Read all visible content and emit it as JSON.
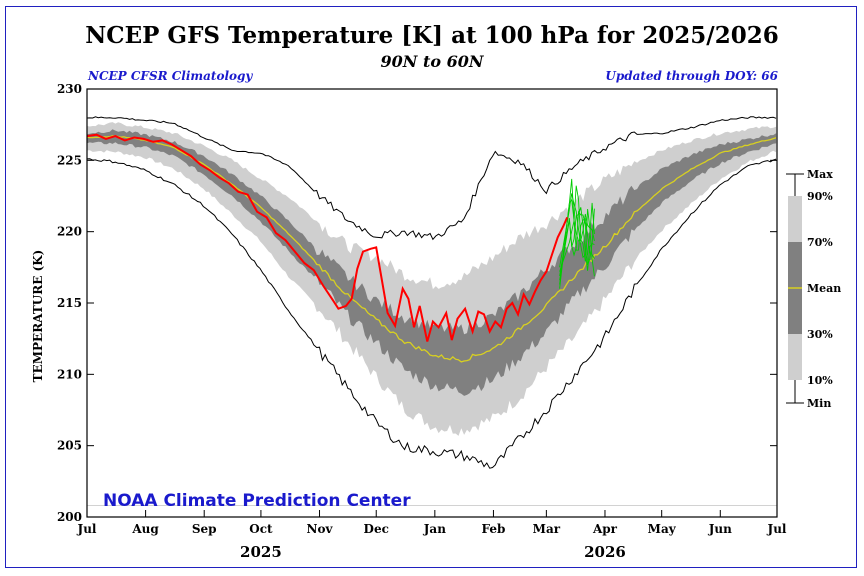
{
  "chart_data": {
    "type": "line",
    "title": "NCEP GFS Temperature [K] at 100 hPa for 2025/2026",
    "subtitle": "90N to 60N",
    "climatology_label": "NCEP CFSR Climatology",
    "updated_label": "Updated through DOY:  66",
    "ylabel": "TEMPERATURE (K)",
    "ylim": [
      200,
      230
    ],
    "yticks": [
      200,
      205,
      210,
      215,
      220,
      225,
      230
    ],
    "xlim": [
      0,
      365
    ],
    "month_ticks": [
      {
        "label": "Jul",
        "day": 0
      },
      {
        "label": "Aug",
        "day": 31
      },
      {
        "label": "Sep",
        "day": 62
      },
      {
        "label": "Oct",
        "day": 92
      },
      {
        "label": "Nov",
        "day": 123
      },
      {
        "label": "Dec",
        "day": 153
      },
      {
        "label": "Jan",
        "day": 184
      },
      {
        "label": "Feb",
        "day": 215
      },
      {
        "label": "Mar",
        "day": 243
      },
      {
        "label": "Apr",
        "day": 274
      },
      {
        "label": "May",
        "day": 304
      },
      {
        "label": "Jun",
        "day": 335
      },
      {
        "label": "Jul",
        "day": 365
      }
    ],
    "year_labels": [
      {
        "label": "2025",
        "day": 92
      },
      {
        "label": "2026",
        "day": 274
      }
    ],
    "credit": "NOAA Climate Prediction Center",
    "legend": {
      "max": "Max",
      "p90": "90%",
      "p70": "70%",
      "mean": "Mean",
      "p30": "30%",
      "p10": "10%",
      "min": "Min"
    },
    "colors": {
      "outer_band": "#cfcfcf",
      "inner_band": "#808080",
      "mean": "#d8d020",
      "observed": "#ff0000",
      "forecast": "#00cc00",
      "extremes": "#000000"
    },
    "climatology": {
      "days": [
        0,
        15,
        31,
        46,
        62,
        77,
        92,
        107,
        123,
        138,
        153,
        168,
        184,
        199,
        215,
        229,
        243,
        258,
        274,
        289,
        304,
        320,
        335,
        350,
        365
      ],
      "mean": [
        226.6,
        226.7,
        226.4,
        225.9,
        224.7,
        223.3,
        221.7,
        219.8,
        217.6,
        215.5,
        213.8,
        212.3,
        211.3,
        211.0,
        211.8,
        213.2,
        214.8,
        216.9,
        219.0,
        221.2,
        223.0,
        224.4,
        225.5,
        226.1,
        226.6
      ],
      "p30": [
        226.2,
        226.2,
        225.9,
        225.3,
        224.0,
        222.5,
        220.7,
        218.6,
        216.4,
        214.1,
        212.2,
        210.3,
        209.2,
        208.8,
        209.6,
        211.2,
        212.9,
        215.3,
        217.6,
        220.0,
        222.0,
        223.6,
        224.8,
        225.6,
        226.2
      ],
      "p70": [
        226.9,
        227.1,
        226.8,
        226.3,
        225.3,
        224.0,
        222.5,
        220.7,
        218.6,
        216.8,
        215.2,
        214.0,
        213.2,
        213.2,
        214.1,
        215.6,
        217.4,
        219.2,
        221.1,
        222.9,
        224.4,
        225.4,
        226.1,
        226.5,
        226.9
      ],
      "p10": [
        225.7,
        225.6,
        225.2,
        224.4,
        223.0,
        221.2,
        219.3,
        216.8,
        214.6,
        212.2,
        209.8,
        207.6,
        206.3,
        206.1,
        206.9,
        208.4,
        210.5,
        212.6,
        215.2,
        217.9,
        220.1,
        222.0,
        223.7,
        224.9,
        225.7
      ],
      "p90": [
        227.4,
        227.6,
        227.3,
        226.9,
        226.0,
        225.0,
        223.7,
        222.4,
        220.6,
        219.0,
        218.2,
        217.0,
        216.3,
        216.8,
        218.2,
        219.6,
        220.6,
        222.1,
        223.6,
        224.8,
        225.7,
        226.4,
        226.9,
        227.2,
        227.4
      ],
      "min": [
        225.1,
        224.9,
        224.3,
        223.3,
        221.8,
        219.8,
        217.3,
        214.4,
        211.6,
        209.0,
        206.6,
        204.9,
        204.6,
        204.3,
        203.5,
        205.5,
        207.5,
        210.0,
        212.6,
        215.9,
        218.8,
        221.3,
        223.3,
        224.6,
        225.1
      ],
      "max": [
        228.0,
        228.0,
        227.8,
        227.6,
        226.6,
        225.7,
        225.5,
        224.6,
        222.5,
        220.8,
        219.7,
        220.0,
        219.6,
        220.8,
        225.6,
        224.9,
        222.9,
        224.6,
        225.9,
        226.8,
        226.9,
        227.3,
        227.8,
        228.0,
        228.0
      ]
    },
    "observed_2025_2026": {
      "days": [
        0,
        5,
        10,
        15,
        20,
        25,
        30,
        35,
        40,
        45,
        50,
        55,
        60,
        65,
        70,
        75,
        80,
        85,
        90,
        95,
        100,
        105,
        110,
        115,
        120,
        125,
        130,
        133,
        137,
        140,
        143,
        146,
        150,
        153,
        156,
        159,
        163,
        167,
        170,
        173,
        176,
        180,
        183,
        186,
        190,
        193,
        196,
        200,
        204,
        207,
        210,
        213,
        216,
        219,
        222,
        225,
        228,
        231,
        234,
        237,
        240,
        243,
        246,
        249,
        252,
        254
      ],
      "values": [
        226.7,
        226.8,
        226.5,
        226.7,
        226.4,
        226.6,
        226.5,
        226.3,
        226.4,
        226.1,
        225.7,
        225.3,
        224.7,
        224.3,
        223.8,
        223.4,
        222.8,
        222.6,
        221.4,
        221.0,
        219.9,
        219.4,
        218.6,
        217.8,
        217.3,
        216.2,
        215.2,
        214.6,
        214.8,
        215.3,
        217.4,
        218.6,
        218.8,
        218.9,
        216.6,
        214.3,
        213.4,
        216.0,
        215.3,
        213.3,
        214.8,
        212.3,
        213.7,
        213.3,
        214.3,
        212.4,
        213.9,
        214.6,
        213.0,
        214.4,
        214.2,
        213.0,
        213.7,
        213.3,
        214.6,
        215.0,
        214.2,
        215.6,
        214.9,
        215.8,
        216.6,
        217.2,
        218.4,
        219.6,
        220.4,
        221.0
      ]
    },
    "forecast_ensemble_members": 6
  }
}
